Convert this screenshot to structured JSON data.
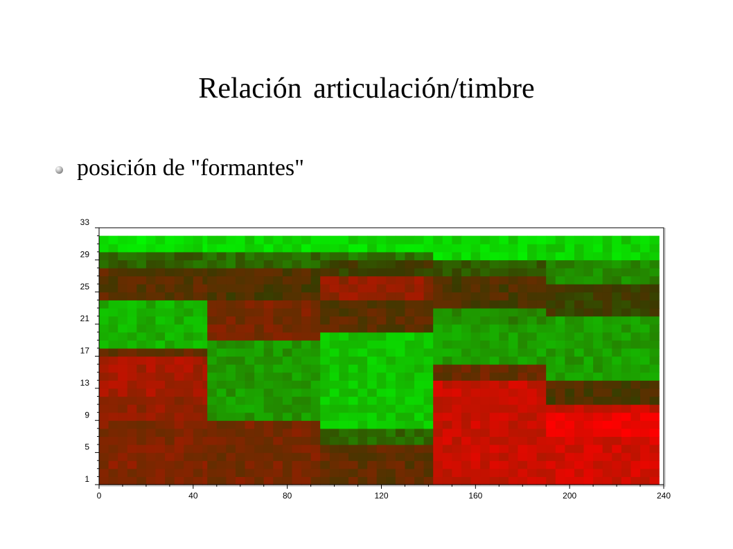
{
  "slide": {
    "title": "Relación articulación/timbre",
    "bullets": [
      "posición de \"formantes\""
    ]
  },
  "chart_data": {
    "type": "heatmap",
    "title": "",
    "xlabel": "",
    "ylabel": "",
    "xlim": [
      0,
      240
    ],
    "ylim": [
      1,
      33
    ],
    "x_ticks": [
      0,
      40,
      80,
      120,
      160,
      200,
      240
    ],
    "y_ticks": [
      1,
      5,
      9,
      13,
      17,
      21,
      25,
      29,
      33
    ],
    "grid": false,
    "legend": "none",
    "colormap": {
      "low": "#00ff00",
      "mid": "#3a3a00",
      "high": "#ff0000"
    },
    "rows_y_start": 1,
    "rows_y_end": 32,
    "segments": [
      {
        "x_start": 0,
        "x_end": 46,
        "y_bands": [
          [
            1,
            9,
            0.68
          ],
          [
            9,
            12,
            0.72
          ],
          [
            12,
            17,
            0.78
          ],
          [
            17,
            18,
            0.6
          ],
          [
            18,
            24,
            0.2
          ],
          [
            24,
            28,
            0.58
          ],
          [
            28,
            30,
            0.4
          ],
          [
            30,
            32,
            0.08
          ]
        ]
      },
      {
        "x_start": 46,
        "x_end": 94,
        "y_bands": [
          [
            1,
            9,
            0.66
          ],
          [
            9,
            19,
            0.26
          ],
          [
            19,
            24,
            0.66
          ],
          [
            24,
            28,
            0.55
          ],
          [
            28,
            30,
            0.38
          ],
          [
            30,
            32,
            0.1
          ]
        ]
      },
      {
        "x_start": 94,
        "x_end": 142,
        "y_bands": [
          [
            1,
            6,
            0.6
          ],
          [
            6,
            8,
            0.38
          ],
          [
            8,
            20,
            0.15
          ],
          [
            20,
            24,
            0.58
          ],
          [
            24,
            27,
            0.72
          ],
          [
            27,
            29,
            0.5
          ],
          [
            29,
            30,
            0.35
          ],
          [
            30,
            32,
            0.1
          ]
        ]
      },
      {
        "x_start": 142,
        "x_end": 190,
        "y_bands": [
          [
            1,
            14,
            0.86
          ],
          [
            14,
            16,
            0.62
          ],
          [
            16,
            21,
            0.25
          ],
          [
            21,
            23,
            0.3
          ],
          [
            23,
            27,
            0.55
          ],
          [
            27,
            29,
            0.42
          ],
          [
            29,
            32,
            0.1
          ]
        ]
      },
      {
        "x_start": 190,
        "x_end": 238,
        "y_bands": [
          [
            1,
            7,
            0.88
          ],
          [
            7,
            10,
            0.95
          ],
          [
            10,
            11,
            0.85
          ],
          [
            11,
            14,
            0.55
          ],
          [
            14,
            22,
            0.25
          ],
          [
            22,
            26,
            0.5
          ],
          [
            26,
            29,
            0.3
          ],
          [
            29,
            32,
            0.12
          ]
        ]
      }
    ]
  }
}
